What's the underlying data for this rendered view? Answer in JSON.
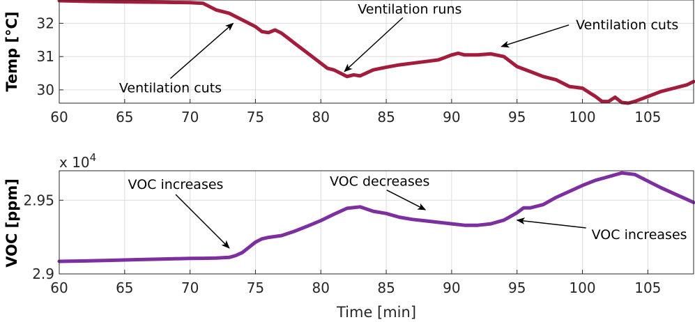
{
  "chart_data": [
    {
      "type": "line",
      "ylabel": "Temp [°C]",
      "xlabel": "",
      "xlim": [
        60,
        108.5
      ],
      "ylim": [
        29.6,
        32.7
      ],
      "xticks": [
        60,
        65,
        70,
        75,
        80,
        85,
        90,
        95,
        100,
        105
      ],
      "xtick_labels": [
        "60",
        "65",
        "70",
        "75",
        "80",
        "85",
        "90",
        "95",
        "100",
        "105"
      ],
      "yticks": [
        30,
        31,
        32
      ],
      "ytick_labels": [
        "30",
        "31",
        "32"
      ],
      "grid": true,
      "color": "#a31c3c",
      "series": [
        {
          "name": "Temp",
          "x": [
            60,
            62,
            64,
            66,
            68,
            70,
            71,
            72,
            73,
            74,
            75,
            75.5,
            76,
            76.5,
            77,
            77.5,
            78,
            79,
            80,
            80.5,
            81,
            81.5,
            82,
            82.5,
            83,
            84,
            85,
            86,
            87,
            88,
            89,
            90,
            90.5,
            91,
            92,
            93,
            94,
            95,
            96,
            97,
            98,
            99,
            100,
            101,
            101.5,
            102,
            102.5,
            103,
            103.5,
            104,
            105,
            106,
            107,
            108,
            108.5
          ],
          "y": [
            32.68,
            32.66,
            32.65,
            32.64,
            32.63,
            32.62,
            32.6,
            32.4,
            32.3,
            32.1,
            31.9,
            31.75,
            31.72,
            31.8,
            31.7,
            31.55,
            31.4,
            31.1,
            30.8,
            30.65,
            30.6,
            30.5,
            30.4,
            30.45,
            30.42,
            30.6,
            30.68,
            30.75,
            30.8,
            30.85,
            30.9,
            31.05,
            31.1,
            31.05,
            31.05,
            31.08,
            31.0,
            30.7,
            30.55,
            30.4,
            30.3,
            30.1,
            30.05,
            29.8,
            29.65,
            29.65,
            29.78,
            29.62,
            29.6,
            29.65,
            29.8,
            29.95,
            30.05,
            30.15,
            30.25
          ]
        }
      ],
      "annotations": [
        {
          "text": "Ventilation cuts",
          "x": 68.5,
          "y": 30.05,
          "arrow_to": [
            73.3,
            32.0
          ]
        },
        {
          "text": "Ventilation runs",
          "x": 86.8,
          "y": 32.42,
          "arrow_to": [
            81.8,
            30.55
          ]
        },
        {
          "text": "Ventilation cuts",
          "x": 99.5,
          "y": 31.95,
          "arrow_to": [
            93.8,
            31.3
          ]
        }
      ]
    },
    {
      "type": "line",
      "ylabel": "VOC [ppm]",
      "xlabel": "Time [min]",
      "multiplier_label": "x 10",
      "multiplier_exponent": "4",
      "xlim": [
        60,
        108.5
      ],
      "ylim": [
        2.9,
        2.97
      ],
      "xticks": [
        60,
        65,
        70,
        75,
        80,
        85,
        90,
        95,
        100,
        105
      ],
      "xtick_labels": [
        "60",
        "65",
        "70",
        "75",
        "80",
        "85",
        "90",
        "95",
        "100",
        "105"
      ],
      "yticks": [
        2.9,
        2.95
      ],
      "ytick_labels": [
        "2.9",
        "2.95"
      ],
      "grid": true,
      "color": "#7d2fa0",
      "series": [
        {
          "name": "VOC",
          "x": [
            60,
            62,
            64,
            66,
            68,
            70,
            71,
            72,
            73,
            73.5,
            74,
            75,
            75.5,
            76,
            77,
            78,
            79,
            80,
            81,
            82,
            83,
            84,
            85,
            86,
            87,
            88,
            89,
            90,
            91,
            92,
            93,
            94,
            95,
            95.5,
            96,
            97,
            98,
            99,
            100,
            101,
            102,
            103,
            104,
            105,
            106,
            107,
            108,
            108.5
          ],
          "y": [
            2.9085,
            2.9088,
            2.9092,
            2.9097,
            2.9101,
            2.9105,
            2.9106,
            2.9108,
            2.9112,
            2.9125,
            2.9145,
            2.9215,
            2.9238,
            2.9248,
            2.926,
            2.929,
            2.9325,
            2.9362,
            2.9405,
            2.9445,
            2.9455,
            2.9425,
            2.941,
            2.9385,
            2.937,
            2.936,
            2.935,
            2.934,
            2.933,
            2.933,
            2.934,
            2.9365,
            2.9415,
            2.9448,
            2.9448,
            2.947,
            2.952,
            2.956,
            2.96,
            2.9635,
            2.966,
            2.9685,
            2.9675,
            2.963,
            2.9585,
            2.9545,
            2.9505,
            2.9485
          ]
        }
      ],
      "annotations": [
        {
          "text": "VOC increases",
          "x": 68.9,
          "y": 2.9605,
          "arrow_to": [
            73.0,
            2.9175
          ]
        },
        {
          "text": "VOC decreases",
          "x": 84.5,
          "y": 2.9626,
          "arrow_to": [
            88.0,
            2.9435
          ]
        },
        {
          "text": "VOC increases",
          "x": 100.7,
          "y": 2.9265,
          "arrow_to": [
            95.0,
            2.9365
          ]
        }
      ]
    }
  ]
}
